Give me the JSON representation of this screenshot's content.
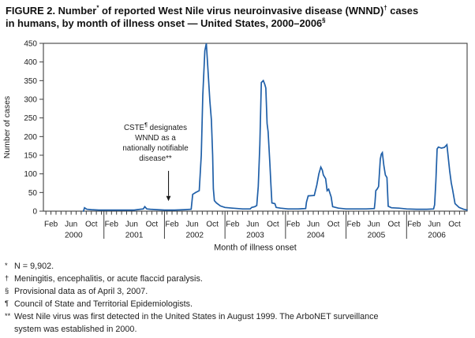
{
  "header": {
    "lines": [
      [
        {
          "t": "FIGURE 2. Number"
        },
        {
          "t": "*",
          "sup": true
        },
        {
          "t": " of reported West Nile virus neuroinvasive disease (WNND)",
          "sup": false
        },
        {
          "t": "†",
          "sup": true
        },
        {
          "t": " cases",
          "sup": false
        }
      ],
      [
        {
          "t": "in humans, by month of illness onset — United States, 2000–2006",
          "sup": false
        },
        {
          "t": "§",
          "sup": true
        }
      ]
    ]
  },
  "chart_data": {
    "type": "line",
    "title": "Number of reported West Nile virus neuroinvasive disease (WNND) cases in humans, by month of illness onset — United States, 2000–2006",
    "xlabel": "Month of illness onset",
    "ylabel": "Number of cases",
    "ylim": [
      0,
      450
    ],
    "y_ticks": [
      0,
      50,
      100,
      150,
      200,
      250,
      300,
      350,
      400,
      450
    ],
    "grid": false,
    "legend": "none",
    "line_color": "#1f5fa8",
    "x_axis": {
      "years": [
        "2000",
        "2001",
        "2002",
        "2003",
        "2004",
        "2005",
        "2006"
      ],
      "months_per_year": 12,
      "month_tick_labels": [
        {
          "label": "Feb",
          "month_index": 1
        },
        {
          "label": "Jun",
          "month_index": 5
        },
        {
          "label": "Oct",
          "month_index": 9
        }
      ]
    },
    "annual_peak_cases": {
      "2000": 9,
      "2001": 12,
      "2002": 450,
      "2003": 350,
      "2004": 118,
      "2005": 157,
      "2006": 178
    },
    "series": [
      {
        "name": "Reported WNND cases",
        "x_unit": "months since Jan 2000 (fractional = position within month)",
        "points": [
          [
            7.95,
            0
          ],
          [
            8.15,
            9
          ],
          [
            8.6,
            5
          ],
          [
            9.5,
            4
          ],
          [
            11,
            3
          ],
          [
            13,
            3
          ],
          [
            16,
            3
          ],
          [
            18,
            3
          ],
          [
            19.2,
            5
          ],
          [
            19.8,
            6
          ],
          [
            20.1,
            12
          ],
          [
            20.5,
            6
          ],
          [
            21.2,
            5
          ],
          [
            22.5,
            4
          ],
          [
            24,
            3
          ],
          [
            26,
            3
          ],
          [
            28,
            4
          ],
          [
            29.3,
            5
          ],
          [
            29.6,
            45
          ],
          [
            30.2,
            50
          ],
          [
            30.9,
            55
          ],
          [
            31.3,
            150
          ],
          [
            31.6,
            310
          ],
          [
            32,
            430
          ],
          [
            32.3,
            450
          ],
          [
            32.6,
            385
          ],
          [
            33,
            295
          ],
          [
            33.3,
            245
          ],
          [
            33.55,
            150
          ],
          [
            33.7,
            60
          ],
          [
            33.9,
            28
          ],
          [
            34.3,
            22
          ],
          [
            35.1,
            14
          ],
          [
            36,
            10
          ],
          [
            37.5,
            8
          ],
          [
            39.5,
            6
          ],
          [
            41,
            6
          ],
          [
            41.3,
            10
          ],
          [
            41.9,
            12
          ],
          [
            42.3,
            15
          ],
          [
            42.6,
            66
          ],
          [
            42.9,
            178
          ],
          [
            43.2,
            345
          ],
          [
            43.6,
            350
          ],
          [
            43.9,
            340
          ],
          [
            44.1,
            330
          ],
          [
            44.35,
            235
          ],
          [
            44.55,
            213
          ],
          [
            44.9,
            129
          ],
          [
            45.1,
            73
          ],
          [
            45.3,
            22
          ],
          [
            45.9,
            20
          ],
          [
            46.15,
            10
          ],
          [
            47,
            8
          ],
          [
            48.5,
            6
          ],
          [
            50.5,
            6
          ],
          [
            52,
            7
          ],
          [
            52.15,
            24
          ],
          [
            52.5,
            41
          ],
          [
            53.7,
            42
          ],
          [
            54.2,
            70
          ],
          [
            54.6,
            100
          ],
          [
            55,
            118
          ],
          [
            55.3,
            110
          ],
          [
            55.5,
            97
          ],
          [
            55.95,
            87
          ],
          [
            56.25,
            55
          ],
          [
            56.55,
            59
          ],
          [
            57.05,
            38
          ],
          [
            57.35,
            12
          ],
          [
            58.5,
            8
          ],
          [
            60,
            6
          ],
          [
            62,
            6
          ],
          [
            64,
            6
          ],
          [
            65.6,
            7
          ],
          [
            65.75,
            25
          ],
          [
            65.9,
            55
          ],
          [
            66.15,
            59
          ],
          [
            66.45,
            66
          ],
          [
            66.8,
            140
          ],
          [
            67,
            153
          ],
          [
            67.2,
            157
          ],
          [
            67.5,
            122
          ],
          [
            67.8,
            97
          ],
          [
            68.1,
            90
          ],
          [
            68.35,
            13
          ],
          [
            69,
            9
          ],
          [
            70.5,
            8
          ],
          [
            72,
            6
          ],
          [
            74,
            5
          ],
          [
            76,
            5
          ],
          [
            77.35,
            6
          ],
          [
            77.55,
            17
          ],
          [
            77.8,
            80
          ],
          [
            78.05,
            167
          ],
          [
            78.3,
            172
          ],
          [
            78.9,
            169
          ],
          [
            79.5,
            171
          ],
          [
            80,
            178
          ],
          [
            80.55,
            108
          ],
          [
            80.85,
            76
          ],
          [
            81.1,
            59
          ],
          [
            81.6,
            20
          ],
          [
            82.4,
            10
          ],
          [
            83.3,
            5
          ],
          [
            84,
            3
          ]
        ]
      }
    ],
    "annotation": {
      "line1_pre": "CSTE",
      "line1_sup": "¶",
      "line1_post": " designates",
      "line2": "WNND as a",
      "line3": "nationally notifiable",
      "line4": "disease**",
      "arrow": {
        "month": 24.8,
        "value_top": 108,
        "value_tip": 27
      }
    }
  },
  "footnotes": [
    {
      "marker": "*",
      "text": "N = 9,902."
    },
    {
      "marker": "†",
      "text": "Meningitis, encephalitis, or acute flaccid paralysis."
    },
    {
      "marker": "§",
      "text": "Provisional data as of April 3, 2007."
    },
    {
      "marker": "¶",
      "text": "Council of State and Territorial Epidemiologists."
    },
    {
      "marker": "**",
      "text": "West Nile virus was first detected in the United States in August 1999. The ArboNET surveillance",
      "text2": "system was established in 2000."
    }
  ]
}
